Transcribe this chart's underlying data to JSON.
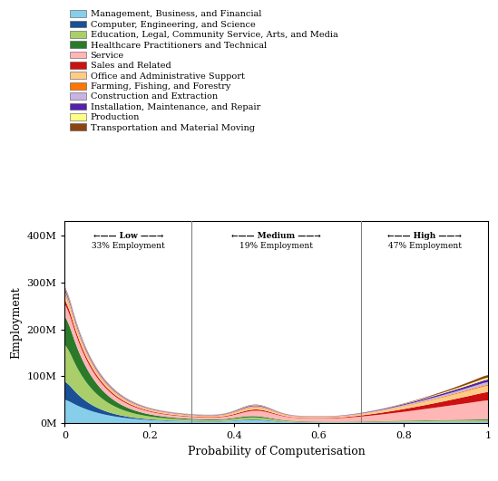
{
  "categories": [
    "Management, Business, and Financial",
    "Computer, Engineering, and Science",
    "Education, Legal, Community Service, Arts, and Media",
    "Healthcare Practitioners and Technical",
    "Service",
    "Sales and Related",
    "Office and Administrative Support",
    "Farming, Fishing, and Forestry",
    "Construction and Extraction",
    "Installation, Maintenance, and Repair",
    "Production",
    "Transportation and Material Moving"
  ],
  "colors": [
    "#87CEEB",
    "#1A5096",
    "#AACF6A",
    "#2A7A2A",
    "#FFB6B6",
    "#CC1111",
    "#FFCC88",
    "#FF7700",
    "#C8B4E0",
    "#5522AA",
    "#FFFF88",
    "#8B4513"
  ],
  "vlines": [
    0.3,
    0.7
  ],
  "xlabel": "Probability of Computerisation",
  "ylabel": "Employment",
  "yticks": [
    0,
    100,
    200,
    300,
    400
  ],
  "ytick_labels": [
    "0M",
    "100M",
    "200M",
    "300M",
    "400M"
  ],
  "ylim": [
    0,
    430
  ],
  "xlim": [
    0,
    1.0
  ]
}
